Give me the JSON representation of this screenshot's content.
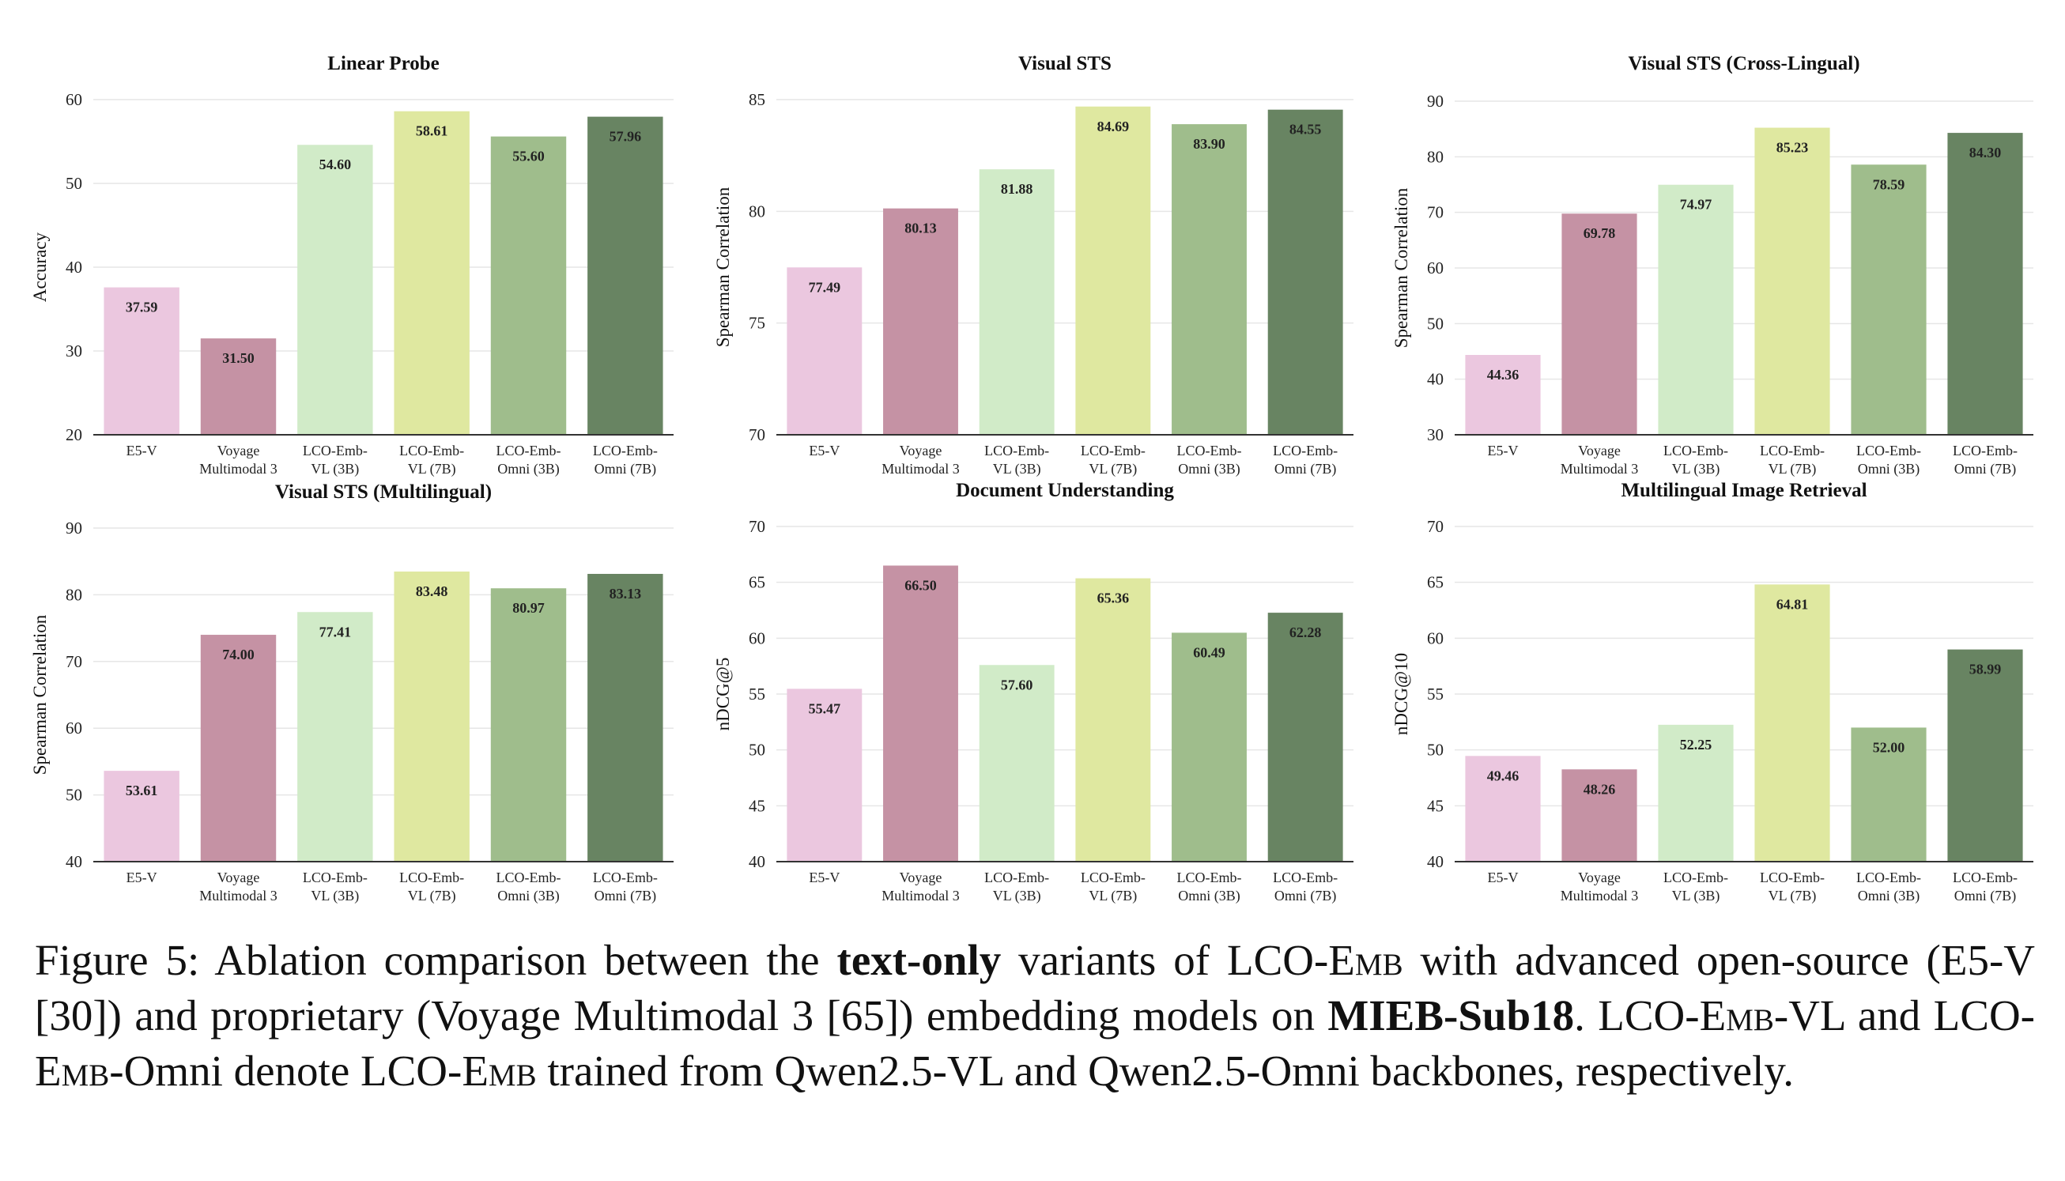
{
  "chart_data": [
    {
      "type": "bar",
      "title": "Linear Probe",
      "ylabel": "Accuracy",
      "ylim": [
        20,
        60
      ],
      "yticks": [
        20,
        30,
        40,
        50,
        60
      ],
      "categories": [
        "E5-V",
        "Voyage Multimodal 3",
        "LCO-Emb- VL (3B)",
        "LCO-Emb- VL (7B)",
        "LCO-Emb- Omni (3B)",
        "LCO-Emb- Omni (7B)"
      ],
      "values": [
        37.59,
        31.5,
        54.6,
        58.61,
        55.6,
        57.96
      ],
      "labels": [
        "37.59",
        "31.50",
        "54.60",
        "58.61",
        "55.60",
        "57.96"
      ]
    },
    {
      "type": "bar",
      "title": "Visual STS",
      "ylabel": "Spearman Correlation",
      "ylim": [
        70,
        85
      ],
      "yticks": [
        70,
        75,
        80,
        85
      ],
      "categories": [
        "E5-V",
        "Voyage Multimodal 3",
        "LCO-Emb- VL (3B)",
        "LCO-Emb- VL (7B)",
        "LCO-Emb- Omni (3B)",
        "LCO-Emb- Omni (7B)"
      ],
      "values": [
        77.49,
        80.13,
        81.88,
        84.69,
        83.9,
        84.55
      ],
      "labels": [
        "77.49",
        "80.13",
        "81.88",
        "84.69",
        "83.90",
        "84.55"
      ]
    },
    {
      "type": "bar",
      "title": "Visual STS (Cross-Lingual)",
      "ylabel": "Spearman Correlation",
      "ylim": [
        30,
        90
      ],
      "yticks": [
        30,
        40,
        50,
        60,
        70,
        80,
        90
      ],
      "categories": [
        "E5-V",
        "Voyage Multimodal 3",
        "LCO-Emb- VL (3B)",
        "LCO-Emb- VL (7B)",
        "LCO-Emb- Omni (3B)",
        "LCO-Emb- Omni (7B)"
      ],
      "values": [
        44.36,
        69.78,
        74.97,
        85.23,
        78.59,
        84.3
      ],
      "labels": [
        "44.36",
        "69.78",
        "74.97",
        "85.23",
        "78.59",
        "84.30"
      ]
    },
    {
      "type": "bar",
      "title": "Visual STS (Multilingual)",
      "ylabel": "Spearman Correlation",
      "ylim": [
        40,
        90
      ],
      "yticks": [
        40,
        50,
        60,
        70,
        80,
        90
      ],
      "categories": [
        "E5-V",
        "Voyage Multimodal 3",
        "LCO-Emb- VL (3B)",
        "LCO-Emb- VL (7B)",
        "LCO-Emb- Omni (3B)",
        "LCO-Emb- Omni (7B)"
      ],
      "values": [
        53.61,
        74.0,
        77.41,
        83.48,
        80.97,
        83.13
      ],
      "labels": [
        "53.61",
        "74.00",
        "77.41",
        "83.48",
        "80.97",
        "83.13"
      ]
    },
    {
      "type": "bar",
      "title": "Document Understanding",
      "ylabel": "nDCG@5",
      "ylim": [
        40,
        70
      ],
      "yticks": [
        40,
        45,
        50,
        55,
        60,
        65,
        70
      ],
      "categories": [
        "E5-V",
        "Voyage Multimodal 3",
        "LCO-Emb- VL (3B)",
        "LCO-Emb- VL (7B)",
        "LCO-Emb- Omni (3B)",
        "LCO-Emb- Omni (7B)"
      ],
      "values": [
        55.47,
        66.5,
        57.6,
        65.36,
        60.49,
        62.28
      ],
      "labels": [
        "55.47",
        "66.50",
        "57.60",
        "65.36",
        "60.49",
        "62.28"
      ]
    },
    {
      "type": "bar",
      "title": "Multilingual Image Retrieval",
      "ylabel": "nDCG@10",
      "ylim": [
        40,
        70
      ],
      "yticks": [
        40,
        45,
        50,
        55,
        60,
        65,
        70
      ],
      "categories": [
        "E5-V",
        "Voyage Multimodal 3",
        "LCO-Emb- VL (3B)",
        "LCO-Emb- VL (7B)",
        "LCO-Emb- Omni (3B)",
        "LCO-Emb- Omni (7B)"
      ],
      "values": [
        49.46,
        48.26,
        52.25,
        64.81,
        52.0,
        58.99
      ],
      "labels": [
        "49.46",
        "48.26",
        "52.25",
        "64.81",
        "52.00",
        "58.99"
      ]
    }
  ],
  "colors": [
    "#ebc7df",
    "#c592a4",
    "#d1ebc8",
    "#dfe8a0",
    "#9fbd8c",
    "#688462"
  ],
  "caption": {
    "label": "Figure 5:",
    "text_1": " Ablation comparison between the ",
    "bold_1": "text-only",
    "text_2": " variants of LCO-",
    "sc_1": "Emb",
    "text_3": " with advanced open-source (E5-V [30]) and proprietary (Voyage Multimodal 3 [65]) embedding models on ",
    "bold_2": "MIEB-Sub18",
    "text_4": ". LCO-",
    "sc_2": "Emb",
    "text_5": "-VL and LCO-",
    "sc_3": "Emb",
    "text_6": "-Omni denote LCO-",
    "sc_4": "Emb",
    "text_7": " trained from Qwen2.5-VL and Qwen2.5-Omni backbones, respectively."
  }
}
